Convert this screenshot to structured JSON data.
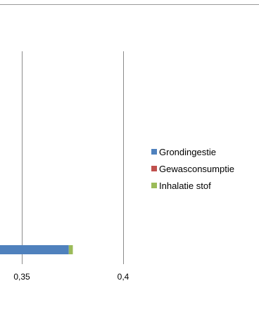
{
  "chart_data": {
    "type": "bar",
    "orientation": "horizontal",
    "stacked": true,
    "categories": [
      ""
    ],
    "series": [
      {
        "name": "Grondingestie",
        "values": [
          0.373
        ],
        "color": "#4F81BD"
      },
      {
        "name": "Gewasconsumptie",
        "values": [
          0.0
        ],
        "color": "#C0504D"
      },
      {
        "name": "Inhalatie stof",
        "values": [
          0.002
        ],
        "color": "#9BBB59"
      }
    ],
    "x_ticks": [
      "0,35",
      "0,4"
    ],
    "x_tick_values": [
      0.35,
      0.4
    ],
    "grid": true,
    "legend_position": "right"
  }
}
